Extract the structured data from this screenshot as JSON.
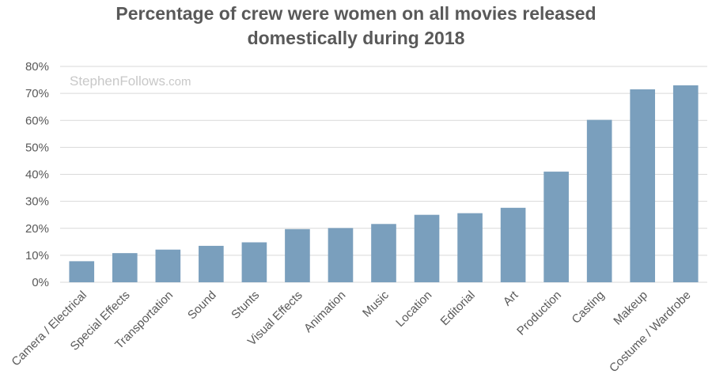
{
  "chart_data": {
    "type": "bar",
    "title_lines": [
      "Percentage of crew were women on all movies released",
      "domestically during 2018"
    ],
    "watermark": {
      "name": "StephenFollows",
      "suffix": ".com"
    },
    "categories": [
      "Camera / Electrical",
      "Special Effects",
      "Transportation",
      "Sound",
      "Stunts",
      "Visual Effects",
      "Animation",
      "Music",
      "Location",
      "Editorial",
      "Art",
      "Production",
      "Casting",
      "Makeup",
      "Costume / Wardrobe"
    ],
    "values": [
      7.8,
      10.8,
      12.1,
      13.5,
      14.8,
      19.7,
      20.1,
      21.6,
      25.0,
      25.6,
      27.6,
      41.0,
      60.2,
      71.5,
      73.0
    ],
    "ylim": [
      0,
      80
    ],
    "yticks": [
      0,
      10,
      20,
      30,
      40,
      50,
      60,
      70,
      80
    ],
    "ytick_suffix": "%",
    "grid": true,
    "legend": "none",
    "bar_color": "#7a9fbd",
    "grid_color": "#d9d9d9",
    "text_color": "#595959"
  }
}
